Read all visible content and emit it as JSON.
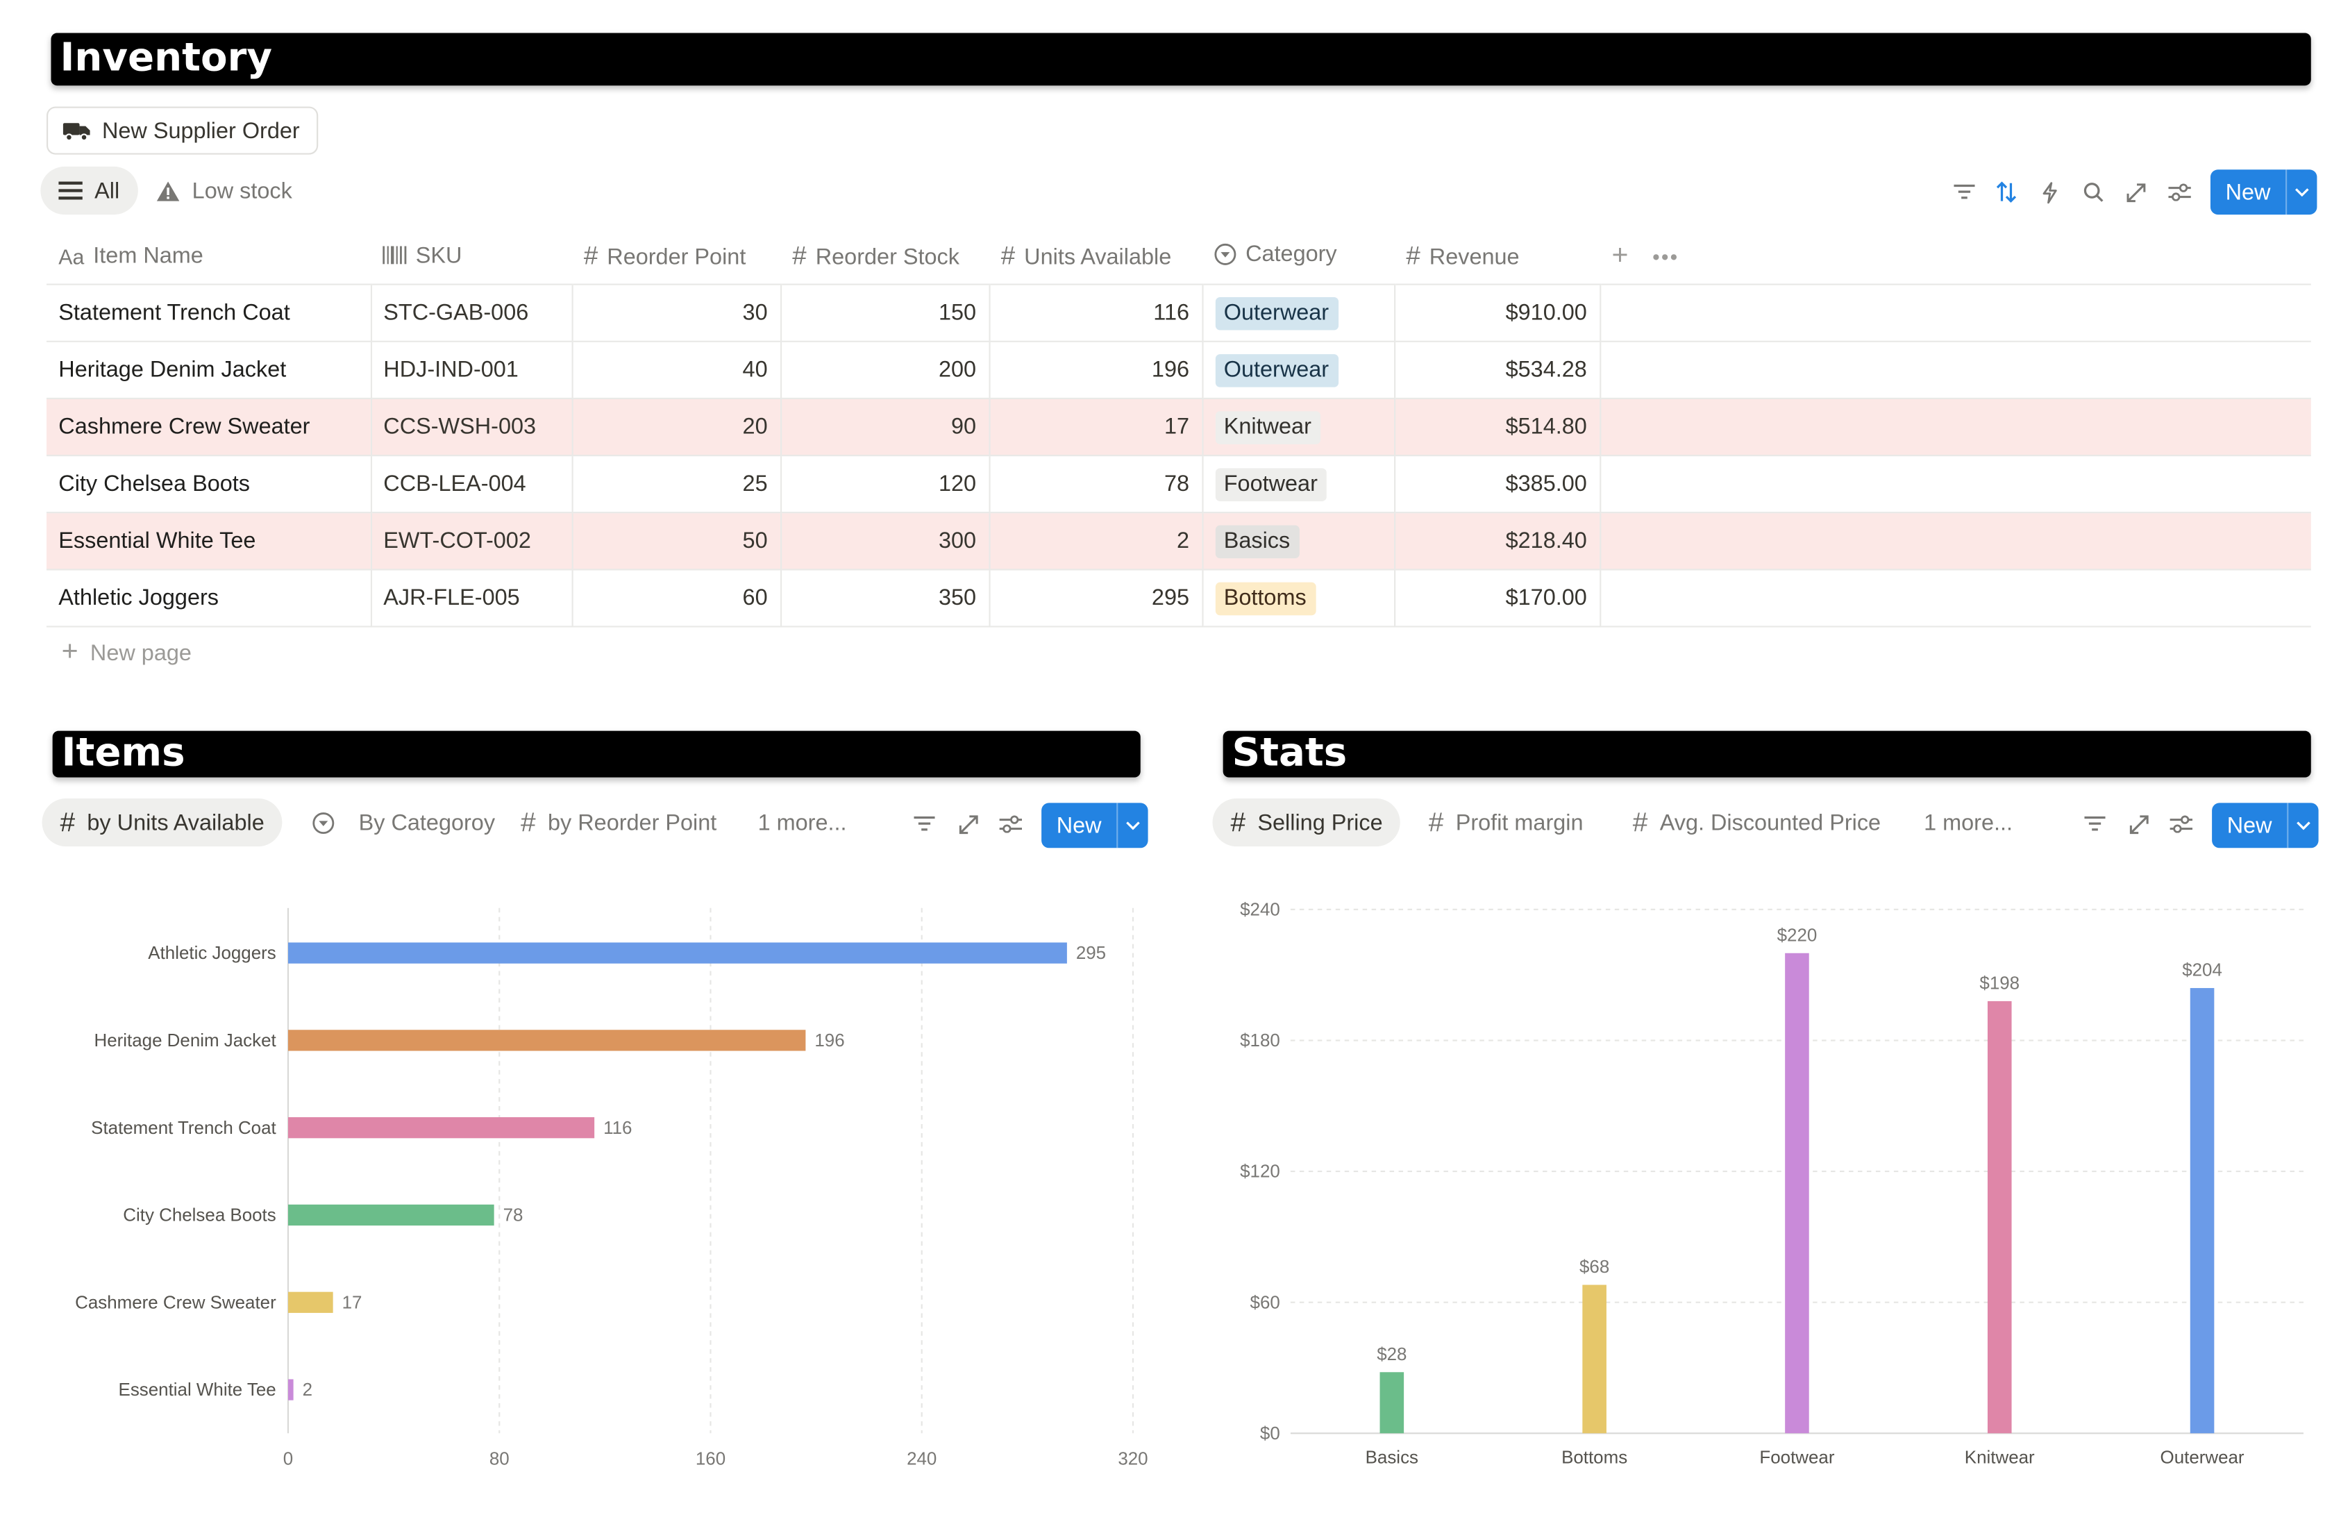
{
  "inventory": {
    "title": "Inventory",
    "supplier_button": "New Supplier Order",
    "views": [
      {
        "label": "All",
        "icon": "list-icon",
        "active": true
      },
      {
        "label": "Low stock",
        "icon": "warning-icon",
        "active": false
      }
    ],
    "toolbar": {
      "icons": [
        "filter-icon",
        "sort-icon",
        "automation-icon",
        "search-icon",
        "expand-icon",
        "settings-icon"
      ],
      "new_label": "New"
    },
    "columns": [
      {
        "label": "Item Name",
        "icon": "text-icon"
      },
      {
        "label": "SKU",
        "icon": "barcode-icon"
      },
      {
        "label": "Reorder Point",
        "icon": "number-icon"
      },
      {
        "label": "Reorder Stock",
        "icon": "number-icon"
      },
      {
        "label": "Units Available",
        "icon": "number-icon"
      },
      {
        "label": "Category",
        "icon": "select-icon"
      },
      {
        "label": "Revenue",
        "icon": "number-icon"
      }
    ],
    "rows": [
      {
        "name": "Statement Trench Coat",
        "sku": "STC-GAB-006",
        "reorder_point": "30",
        "reorder_stock": "150",
        "units": "116",
        "category": "Outerwear",
        "revenue": "$910.00",
        "low": false
      },
      {
        "name": "Heritage Denim Jacket",
        "sku": "HDJ-IND-001",
        "reorder_point": "40",
        "reorder_stock": "200",
        "units": "196",
        "category": "Outerwear",
        "revenue": "$534.28",
        "low": false
      },
      {
        "name": "Cashmere Crew Sweater",
        "sku": "CCS-WSH-003",
        "reorder_point": "20",
        "reorder_stock": "90",
        "units": "17",
        "category": "Knitwear",
        "revenue": "$514.80",
        "low": true
      },
      {
        "name": "City Chelsea Boots",
        "sku": "CCB-LEA-004",
        "reorder_point": "25",
        "reorder_stock": "120",
        "units": "78",
        "category": "Footwear",
        "revenue": "$385.00",
        "low": false
      },
      {
        "name": "Essential White Tee",
        "sku": "EWT-COT-002",
        "reorder_point": "50",
        "reorder_stock": "300",
        "units": "2",
        "category": "Basics",
        "revenue": "$218.40",
        "low": true
      },
      {
        "name": "Athletic Joggers",
        "sku": "AJR-FLE-005",
        "reorder_point": "60",
        "reorder_stock": "350",
        "units": "295",
        "category": "Bottoms",
        "revenue": "$170.00",
        "low": false
      }
    ],
    "category_colors": {
      "Outerwear": {
        "bg": "#d3e5ef",
        "fg": "#183347"
      },
      "Knitwear": {
        "bg": "#eeeeec",
        "fg": "#32302c"
      },
      "Footwear": {
        "bg": "#eeeeec",
        "fg": "#32302c"
      },
      "Basics": {
        "bg": "#e3e2e0",
        "fg": "#32302c"
      },
      "Bottoms": {
        "bg": "#fdecc8",
        "fg": "#402c1b"
      }
    },
    "new_page_label": "New page",
    "low_row_color": "#fce8e6"
  },
  "items": {
    "title": "Items",
    "tabs": [
      {
        "label": "by Units Available",
        "icon": "number-icon",
        "active": true
      },
      {
        "label": "By Categoroy",
        "icon": "select-icon",
        "active": false
      },
      {
        "label": "by Reorder Point",
        "icon": "number-icon",
        "active": false
      }
    ],
    "more_label": "1 more...",
    "new_label": "New"
  },
  "stats": {
    "title": "Stats",
    "tabs": [
      {
        "label": "Selling Price",
        "icon": "number-icon",
        "active": true
      },
      {
        "label": "Profit margin",
        "icon": "number-icon",
        "active": false
      },
      {
        "label": "Avg. Discounted Price",
        "icon": "number-icon",
        "active": false
      }
    ],
    "more_label": "1 more...",
    "new_label": "New"
  },
  "accent_color": "#2383e2",
  "chart_data": [
    {
      "type": "bar",
      "orientation": "horizontal",
      "categories": [
        "Athletic Joggers",
        "Heritage Denim Jacket",
        "Statement Trench Coat",
        "City Chelsea Boots",
        "Cashmere Crew Sweater",
        "Essential White Tee"
      ],
      "values": [
        295,
        196,
        116,
        78,
        17,
        2
      ],
      "value_labels": [
        "295",
        "196",
        "116",
        "78",
        "17",
        "2"
      ],
      "colors": [
        "#6b9be8",
        "#db955d",
        "#df86a8",
        "#6bbd8a",
        "#e6c76a",
        "#c98ad9"
      ],
      "xlim": [
        0,
        320
      ],
      "xticks": [
        "0",
        "80",
        "160",
        "240",
        "320"
      ],
      "grid": true
    },
    {
      "type": "bar",
      "orientation": "vertical",
      "categories": [
        "Basics",
        "Bottoms",
        "Footwear",
        "Knitwear",
        "Outerwear"
      ],
      "values": [
        28,
        68,
        220,
        198,
        204
      ],
      "value_labels": [
        "$28",
        "$68",
        "$220",
        "$198",
        "$204"
      ],
      "colors": [
        "#6bbd8a",
        "#e6c76a",
        "#c98ad9",
        "#df86a8",
        "#6b9be8"
      ],
      "ylim": [
        0,
        240
      ],
      "yticks": [
        "$0",
        "$60",
        "$120",
        "$180",
        "$240"
      ],
      "grid": true
    }
  ]
}
